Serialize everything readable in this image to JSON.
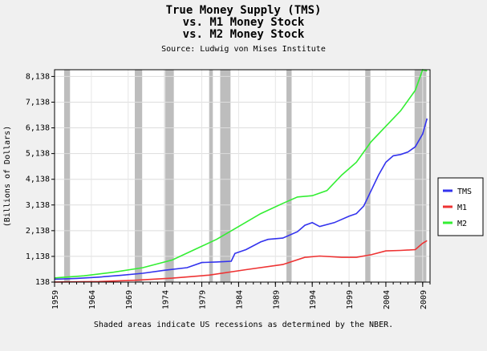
{
  "chart_data": {
    "type": "line",
    "title_lines": [
      "True Money Supply (TMS)",
      "vs. M1 Money Stock",
      "vs. M2 Money Stock"
    ],
    "subtitle": "Source: Ludwig von Mises Institute",
    "ylabel": "(Billions of Dollars)",
    "xlabel": "",
    "footnote": "Shaded areas indicate US recessions as determined by the NBER.",
    "xlim": [
      1959,
      2010
    ],
    "ylim": [
      138,
      8400
    ],
    "yticks": [
      138,
      1138,
      2138,
      3138,
      4138,
      5138,
      6138,
      7138,
      8138
    ],
    "ytick_labels": [
      "138",
      "1,138",
      "2,138",
      "3,138",
      "4,138",
      "5,138",
      "6,138",
      "7,138",
      "8,138"
    ],
    "xticks": [
      1959,
      1964,
      1969,
      1974,
      1979,
      1984,
      1989,
      1994,
      1999,
      2004,
      2009
    ],
    "xtick_labels": [
      "1959",
      "1964",
      "1969",
      "1974",
      "1979",
      "1984",
      "1989",
      "1994",
      "1999",
      "2004",
      "2009"
    ],
    "recessions": [
      [
        1960.3,
        1961.1
      ],
      [
        1969.9,
        1970.9
      ],
      [
        1973.9,
        1975.2
      ],
      [
        1980.0,
        1980.5
      ],
      [
        1981.5,
        1982.9
      ],
      [
        1990.5,
        1991.2
      ],
      [
        2001.2,
        2001.9
      ],
      [
        2007.9,
        2009.5
      ]
    ],
    "grid": true,
    "legend_position": "right",
    "series": [
      {
        "name": "TMS",
        "color": "#3333ee",
        "x": [
          1959,
          1962,
          1965,
          1968,
          1971,
          1974,
          1977,
          1979,
          1981,
          1983,
          1983.5,
          1985,
          1987,
          1988,
          1990,
          1992,
          1993,
          1994,
          1995,
          1997,
          1999,
          2000,
          2001,
          2002,
          2003,
          2004,
          2005,
          2006,
          2007,
          2008,
          2009,
          2009.6
        ],
        "y": [
          250,
          280,
          330,
          400,
          480,
          600,
          700,
          900,
          920,
          950,
          1250,
          1400,
          1700,
          1800,
          1850,
          2100,
          2350,
          2450,
          2300,
          2450,
          2700,
          2800,
          3100,
          3700,
          4300,
          4800,
          5050,
          5100,
          5200,
          5400,
          5900,
          6500
        ]
      },
      {
        "name": "M1",
        "color": "#ee3333",
        "x": [
          1959,
          1965,
          1970,
          1975,
          1980,
          1985,
          1990,
          1993,
          1995,
          1998,
          2000,
          2002,
          2004,
          2006,
          2008,
          2009,
          2009.6
        ],
        "y": [
          140,
          160,
          210,
          290,
          410,
          620,
          820,
          1100,
          1150,
          1100,
          1100,
          1200,
          1350,
          1370,
          1400,
          1650,
          1750
        ]
      },
      {
        "name": "M2",
        "color": "#33ee33",
        "x": [
          1959,
          1963,
          1967,
          1971,
          1975,
          1978,
          1981,
          1984,
          1987,
          1990,
          1992,
          1994,
          1996,
          1998,
          2000,
          2002,
          2004,
          2006,
          2008,
          2009,
          2009.6
        ],
        "y": [
          300,
          380,
          520,
          700,
          1000,
          1400,
          1800,
          2300,
          2800,
          3200,
          3450,
          3500,
          3700,
          4300,
          4800,
          5600,
          6200,
          6800,
          7600,
          8400,
          8350
        ]
      }
    ]
  }
}
